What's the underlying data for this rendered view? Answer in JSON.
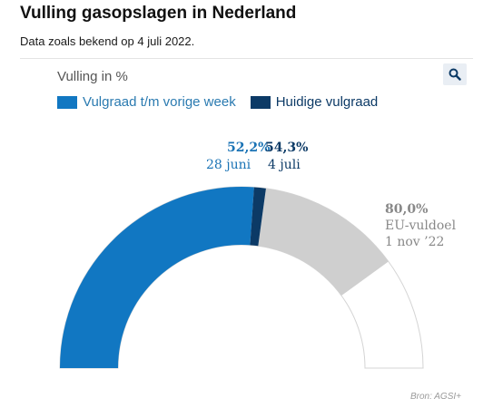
{
  "header": {
    "title": "Vulling gasopslagen in Nederland",
    "subtitle": "Data zoals bekend op 4 juli 2022."
  },
  "toolbar": {
    "search_icon": "search-icon"
  },
  "colors": {
    "prior_fill": "#1177c2",
    "current_fill": "#0c3a66",
    "target_fill": "#cfcfcf",
    "empty_fill": "#ffffff",
    "empty_stroke": "#d4d4d4"
  },
  "chart_data": {
    "type": "gauge",
    "ylabel": "Vulling in %",
    "range": [
      0,
      100
    ],
    "legend": [
      "Vulgraad t/m vorige week",
      "Huidige vulgraad"
    ],
    "legend_position": "top-left",
    "series": [
      {
        "name": "Vulgraad t/m vorige week",
        "value": 52.2,
        "value_label": "52,2%",
        "date_label": "28 juni"
      },
      {
        "name": "Huidige vulgraad",
        "value": 54.3,
        "value_label": "54,3%",
        "date_label": "4 juli"
      }
    ],
    "target": {
      "value": 80.0,
      "value_label": "80,0%",
      "label": "EU-vuldoel",
      "date_label": "1 nov ’22"
    }
  },
  "footer": {
    "source": "Bron: AGSI+"
  }
}
